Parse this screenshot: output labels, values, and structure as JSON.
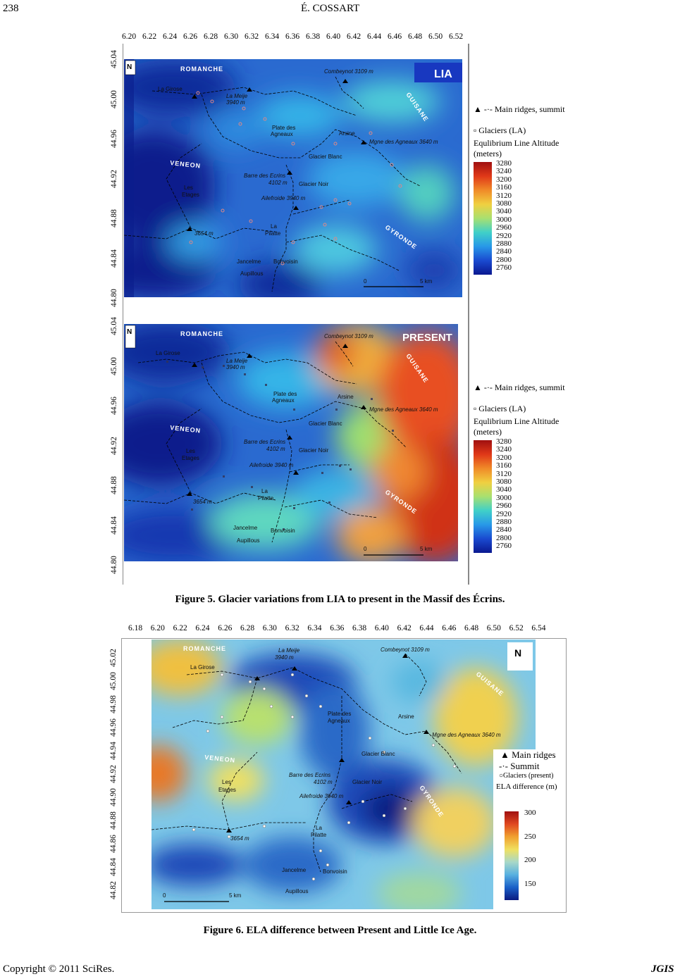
{
  "header": {
    "page_number": "238",
    "author": "É. COSSART"
  },
  "footer": {
    "copyright": "Copyright © 2011 SciRes.",
    "journal": "JGIS"
  },
  "figure5": {
    "caption": "Figure 5. Glacier variations from LIA to present in the Massif des Écrins.",
    "x_ticks": [
      "6.20",
      "6.22",
      "6.24",
      "6.26",
      "6.28",
      "6.30",
      "6.32",
      "6.34",
      "6.36",
      "6.38",
      "6.40",
      "6.42",
      "6.44",
      "6.46",
      "6.48",
      "6.50",
      "6.52"
    ],
    "y_ticks": [
      "45.04",
      "45.00",
      "44.96",
      "44.92",
      "44.88",
      "44.84",
      "44.80"
    ],
    "panels": [
      {
        "tag": "LIA"
      },
      {
        "tag": "PRESENT"
      }
    ],
    "legend": {
      "ridges": "Main ridges, summit",
      "glaciers": "Glaciers (LA)",
      "title": "Equlibrium Line Altitude",
      "unit": "(meters)",
      "values": [
        "3280",
        "3240",
        "3200",
        "3160",
        "3120",
        "3080",
        "3040",
        "3000",
        "2960",
        "2920",
        "2880",
        "2840",
        "2800",
        "2760"
      ]
    },
    "places": {
      "romanche": "ROMANCHE",
      "veneon": "VENEON",
      "guisane": "GUISANE",
      "gyronde": "GYRONDE",
      "combeynot": "Combeynot 3109 m",
      "la_girose": "La Girose",
      "la_meije": "La Meije",
      "la_meije_alt": "3940 m",
      "plate": "Plate des",
      "agneaux": "Agneaux",
      "arsine": "Arsine",
      "mgne": "Mgne des Agneaux 3640 m",
      "glacier_blanc": "Glacier Blanc",
      "barre": "Barre des Ecrins",
      "barre_alt": "4102 m",
      "glacier_noir": "Glacier Noir",
      "les": "Les",
      "etages": "Etages",
      "ailefroide": "Ailefroide 3940 m",
      "la": "La",
      "pilatte": "Pilatte",
      "peak3654": "3654 m",
      "jancelme": "Jancelme",
      "bonvoisin": "Bonvoisin",
      "aupillous": "Aupillous",
      "scale0": "0",
      "scale5": "5 km",
      "north": "N"
    }
  },
  "figure6": {
    "caption": "Figure 6. ELA difference between Present and Little Ice Age.",
    "x_ticks": [
      "6.18",
      "6.20",
      "6.22",
      "6.24",
      "6.26",
      "6.28",
      "6.30",
      "6.32",
      "6.34",
      "6.36",
      "6.38",
      "6.40",
      "6.42",
      "6.44",
      "6.46",
      "6.48",
      "6.50",
      "6.52",
      "6.54"
    ],
    "y_ticks": [
      "45.02",
      "45.00",
      "44.98",
      "44.96",
      "44.94",
      "44.92",
      "44.90",
      "44.88",
      "44.86",
      "44.84",
      "44.82"
    ],
    "legend": {
      "ridges": "Main ridges",
      "summit": "Summit",
      "glaciers": "Glaciers (present)",
      "title": "ELA difference (m)",
      "values": [
        "300",
        "250",
        "200",
        "150"
      ]
    }
  }
}
